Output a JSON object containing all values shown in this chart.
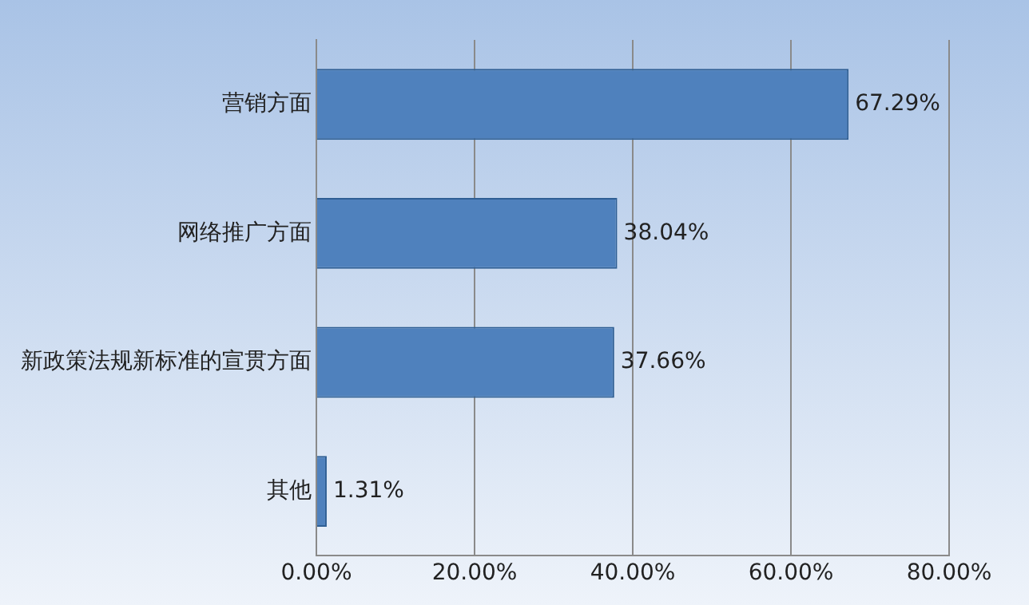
{
  "chart_data": {
    "type": "bar",
    "orientation": "horizontal",
    "categories": [
      "营销方面",
      "网络推广方面",
      "新政策法规新标准的宣贯方面",
      "其他"
    ],
    "values": [
      67.29,
      38.04,
      37.66,
      1.31
    ],
    "value_labels": [
      "67.29%",
      "38.04%",
      "37.66%",
      "1.31%"
    ],
    "color": "#4f81bd",
    "xlim": [
      0,
      80
    ],
    "xticks": [
      {
        "value": 0,
        "label": "0.00%"
      },
      {
        "value": 20,
        "label": "20.00%"
      },
      {
        "value": 40,
        "label": "40.00%"
      },
      {
        "value": 60,
        "label": "60.00%"
      },
      {
        "value": 80,
        "label": "80.00%"
      }
    ],
    "grid": "x"
  }
}
